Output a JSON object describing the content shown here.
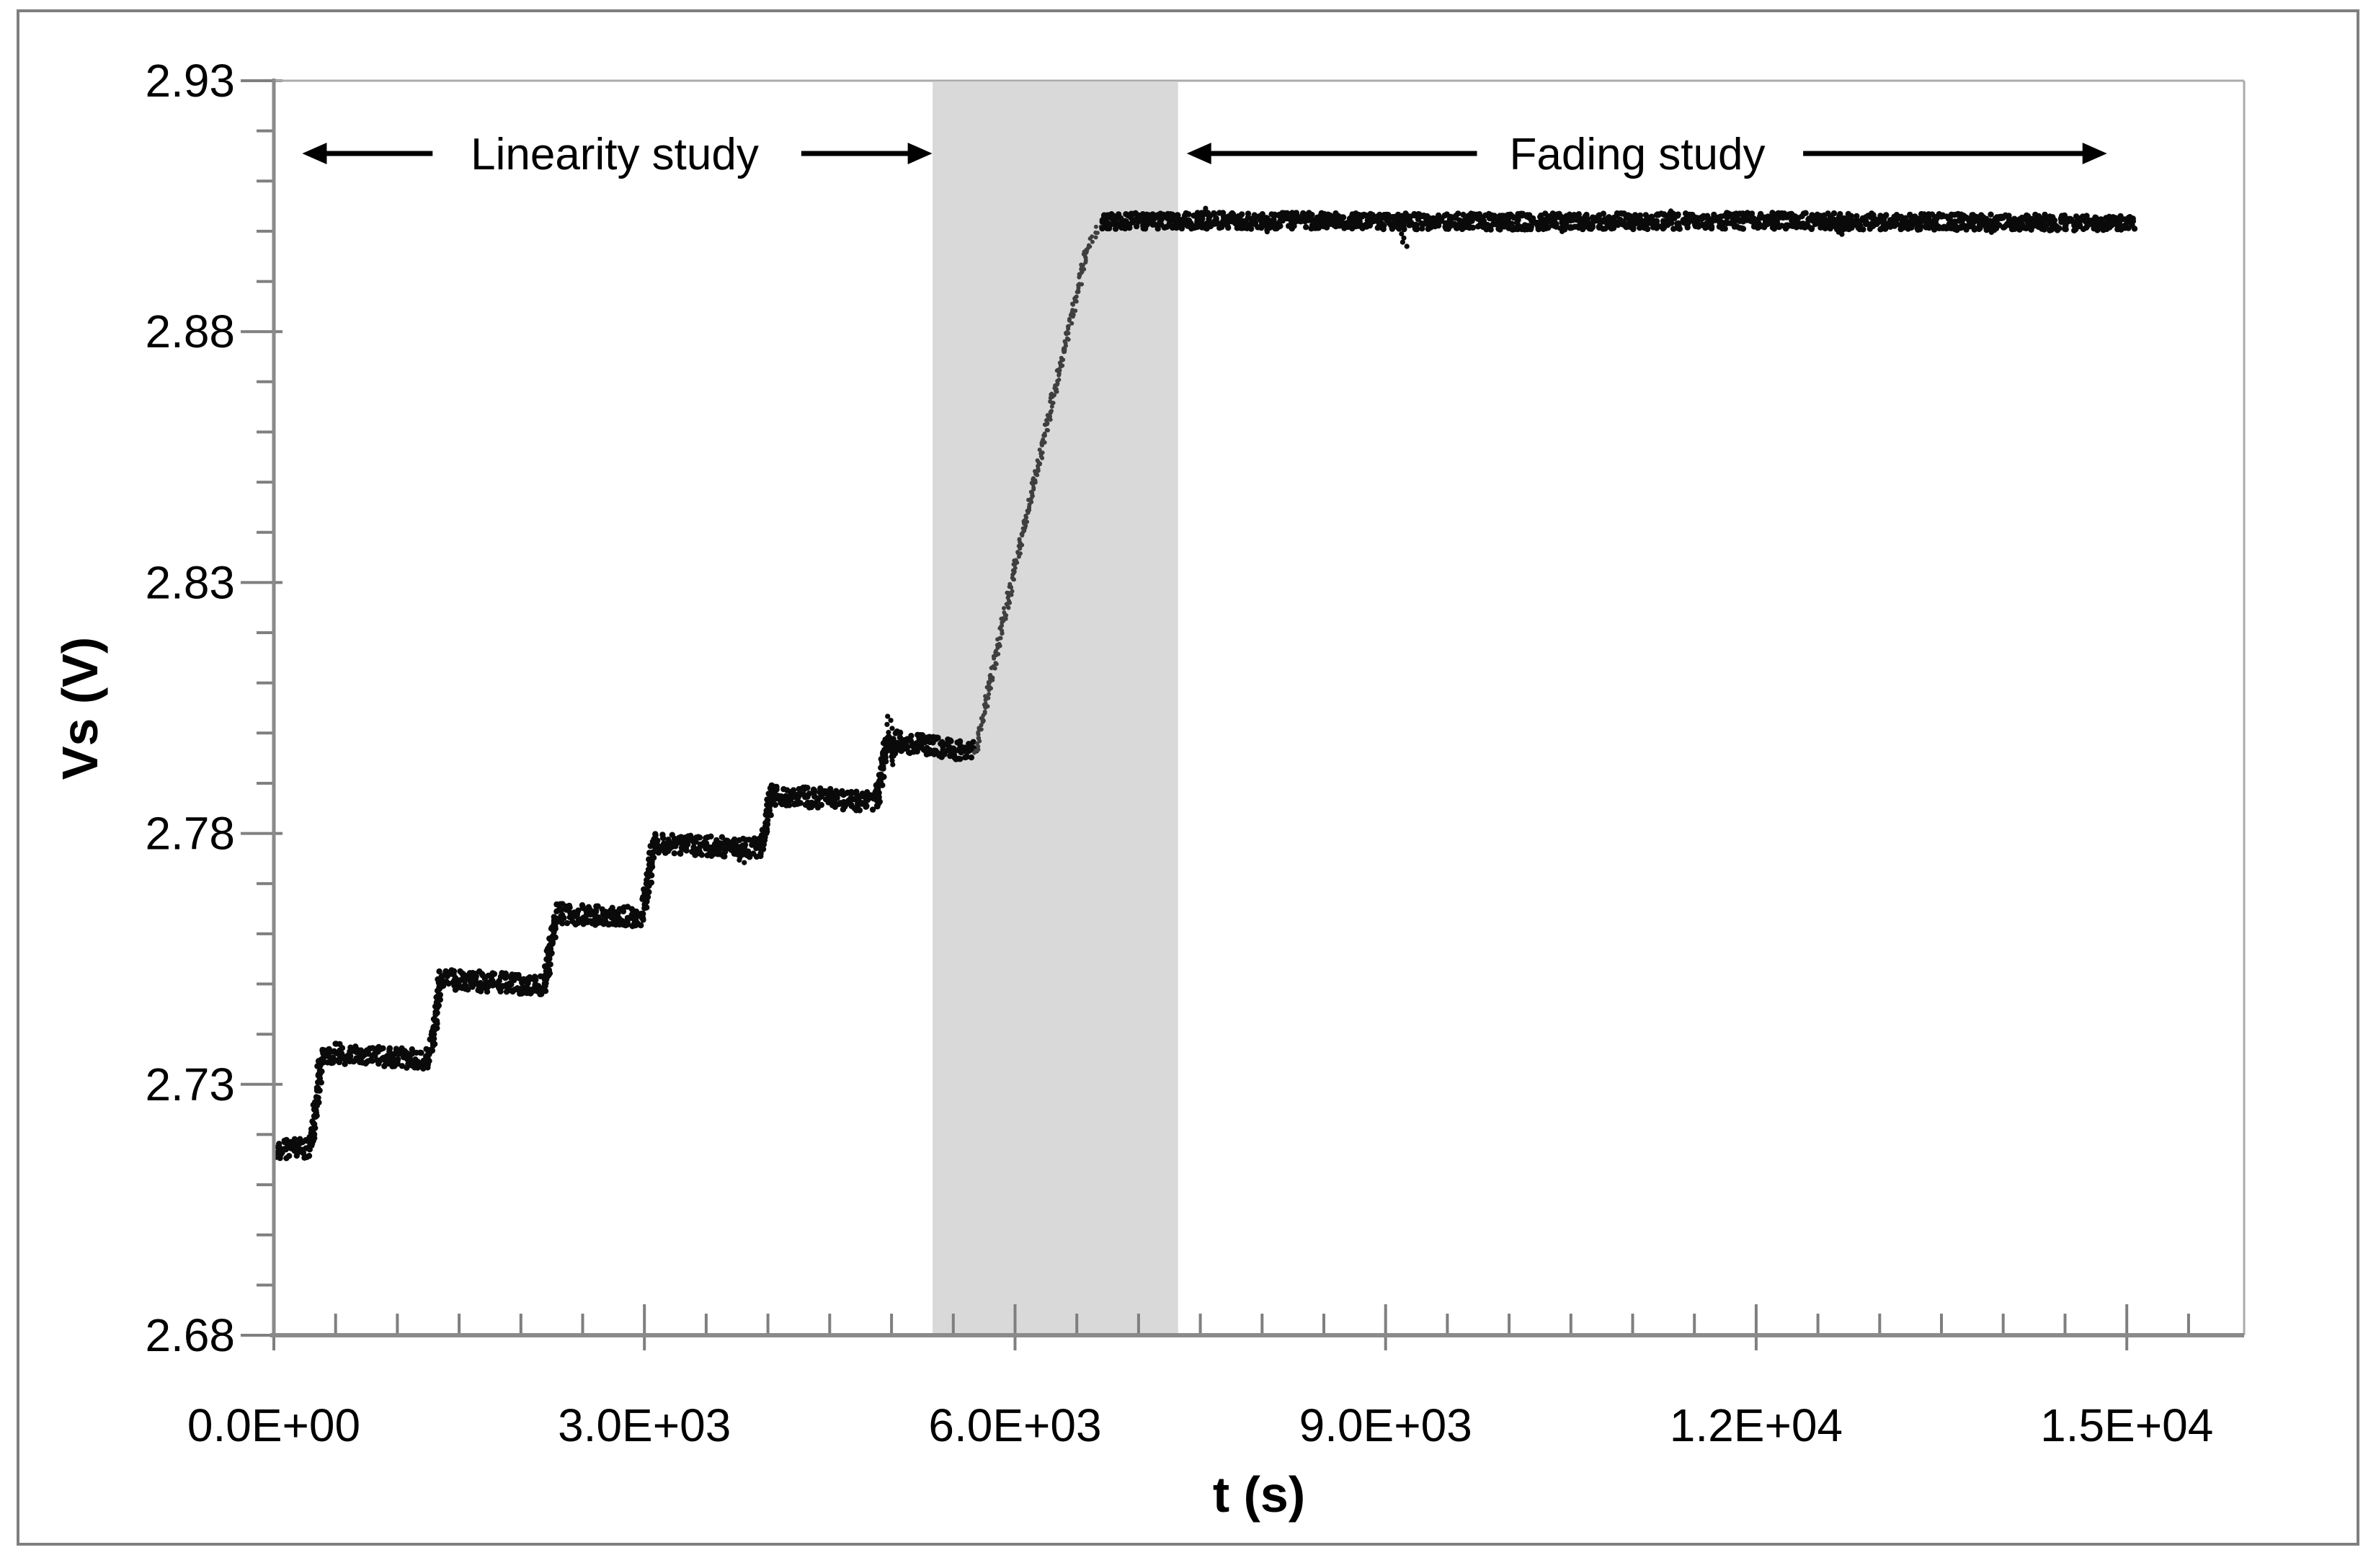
{
  "figure": {
    "background": "#ffffff",
    "outer_border_color": "#7f7f7f",
    "plot_border_color": "#ababab",
    "axis_line_color": "#8a8a8a",
    "tick_color": "#7f7f7f",
    "text_color": "#000000"
  },
  "chart_data": {
    "type": "scatter",
    "title": "",
    "x_axis": {
      "title": "t (s)",
      "min": 0,
      "max": 15950,
      "minor_step": 500,
      "major_ticks": [
        {
          "t": 0,
          "label": "0.0E+00"
        },
        {
          "t": 3000,
          "label": "3.0E+03"
        },
        {
          "t": 6000,
          "label": "6.0E+03"
        },
        {
          "t": 9000,
          "label": "9.0E+03"
        },
        {
          "t": 12000,
          "label": "1.2E+04"
        },
        {
          "t": 15000,
          "label": "1.5E+04"
        }
      ]
    },
    "y_axis": {
      "title": "Vs (V)",
      "min": 2.68,
      "max": 2.93,
      "minor_step": 0.01,
      "major_ticks": [
        {
          "v": 2.68,
          "label": "2.68"
        },
        {
          "v": 2.73,
          "label": "2.73"
        },
        {
          "v": 2.78,
          "label": "2.78"
        },
        {
          "v": 2.83,
          "label": "2.83"
        },
        {
          "v": 2.88,
          "label": "2.88"
        },
        {
          "v": 2.93,
          "label": "2.93"
        }
      ]
    },
    "shaded_region": {
      "t0": 5333,
      "t1": 7320,
      "color": "#d9d9d9"
    },
    "annotations": [
      {
        "id": "linearity",
        "label": "Linearity study",
        "v": 2.9155,
        "text_t": 2760,
        "left_arrow": {
          "tail_t": 1285,
          "tip_t": 230
        },
        "right_arrow": {
          "tail_t": 4270,
          "tip_t": 5330
        }
      },
      {
        "id": "fading",
        "label": "Fading study",
        "v": 2.9155,
        "text_t": 11040,
        "left_arrow": {
          "tail_t": 9740,
          "tip_t": 7390
        },
        "right_arrow": {
          "tail_t": 12380,
          "tip_t": 14840
        }
      }
    ],
    "series": [
      {
        "name": "Vs",
        "color": "#0a0a0a",
        "ramp_color": "#3f3f3f",
        "anchors": [
          [
            20,
            2.717
          ],
          [
            300,
            2.7173
          ],
          [
            390,
            2.7363
          ],
          [
            1265,
            2.735
          ],
          [
            1353,
            2.751
          ],
          [
            2194,
            2.7497
          ],
          [
            2281,
            2.764
          ],
          [
            2987,
            2.7634
          ],
          [
            3074,
            2.778
          ],
          [
            3944,
            2.777
          ],
          [
            4031,
            2.7876
          ],
          [
            4877,
            2.7863
          ],
          [
            4964,
            2.7986
          ],
          [
            5300,
            2.7975
          ],
          [
            5680,
            2.7962
          ],
          [
            6000,
            2.833
          ],
          [
            6300,
            2.866
          ],
          [
            6590,
            2.897
          ],
          [
            6700,
            2.902
          ],
          [
            8000,
            2.9021
          ],
          [
            10000,
            2.9019
          ],
          [
            12000,
            2.9021
          ],
          [
            15060,
            2.9016
          ]
        ],
        "ramp_window": [
          5680,
          6700
        ],
        "noise_flat": 0.002,
        "noise_plateau": 0.0016,
        "noise_ramp": 0.0007,
        "spikes": [
          {
            "t": 3785,
            "dv": -0.003
          },
          {
            "t": 4985,
            "dv": 0.0048
          },
          {
            "t": 4992,
            "dv": -0.0048
          },
          {
            "t": 5020,
            "dv": -0.003
          },
          {
            "t": 7520,
            "dv": 0.0025
          },
          {
            "t": 8060,
            "dv": -0.0022
          },
          {
            "t": 9150,
            "dv": -0.005
          },
          {
            "t": 10430,
            "dv": -0.002
          },
          {
            "t": 11300,
            "dv": 0.002
          },
          {
            "t": 12690,
            "dv": -0.0026
          },
          {
            "t": 13890,
            "dv": -0.002
          }
        ]
      }
    ]
  }
}
